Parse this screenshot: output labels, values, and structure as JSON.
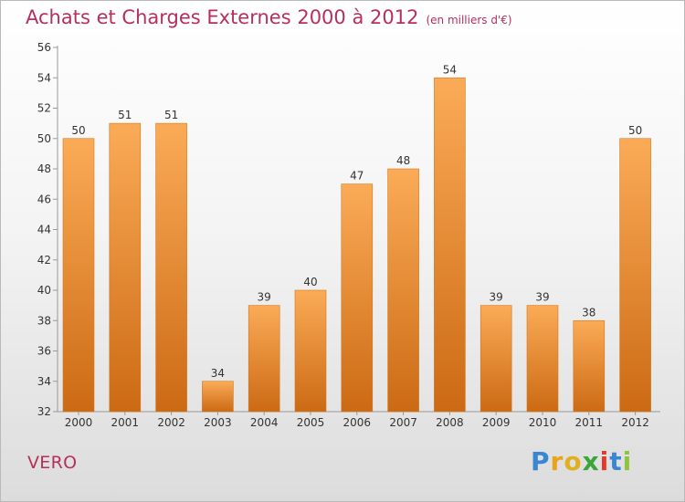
{
  "header": {
    "title": "Achats et Charges Externes 2000 à 2012",
    "unit_note": "(en milliers d'€)"
  },
  "footer": {
    "commune": "VERO",
    "brand": {
      "text": "Proxiti",
      "letter_colors": [
        "#3a86d1",
        "#e8a41a",
        "#e0b020",
        "#3aa63a",
        "#e23a2a",
        "#3a86d1",
        "#8cc63f"
      ]
    }
  },
  "chart_data": {
    "type": "bar",
    "categories": [
      "2000",
      "2001",
      "2002",
      "2003",
      "2004",
      "2005",
      "2006",
      "2007",
      "2008",
      "2009",
      "2010",
      "2011",
      "2012"
    ],
    "values": [
      50,
      51,
      51,
      34,
      39,
      40,
      47,
      48,
      54,
      39,
      39,
      38,
      50
    ],
    "ylim": [
      32,
      56
    ],
    "yticks": [
      32,
      34,
      36,
      38,
      40,
      42,
      44,
      46,
      48,
      50,
      52,
      54,
      56
    ],
    "grid": false,
    "colors": {
      "bar_top": "#fbab57",
      "bar_bottom": "#cc6a14",
      "bar_edge": "#d2781e"
    }
  }
}
